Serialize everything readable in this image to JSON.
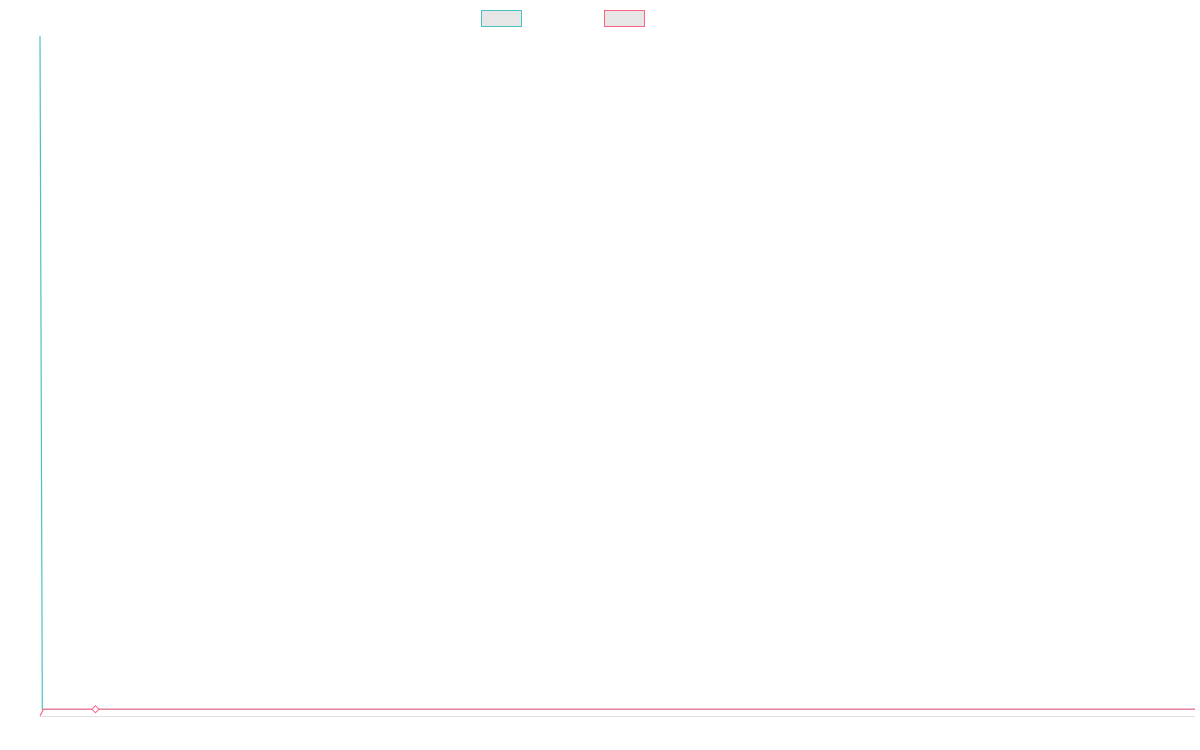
{
  "chart_data": {
    "type": "line",
    "xlim": [
      0,
      100
    ],
    "ylim": [
      0,
      100
    ],
    "series": [
      {
        "color": "#4bc0c0",
        "line": true,
        "marker": null,
        "x": [
          0,
          0.2,
          100
        ],
        "values": [
          100,
          1,
          1
        ]
      },
      {
        "color": "#ff6384",
        "line": true,
        "marker": null,
        "x": [
          0,
          0.3,
          100
        ],
        "values": [
          0,
          1,
          1
        ]
      },
      {
        "color": "#ff6384",
        "line": false,
        "marker": "diamond",
        "x": [
          4.8
        ],
        "values": [
          1
        ]
      }
    ]
  }
}
